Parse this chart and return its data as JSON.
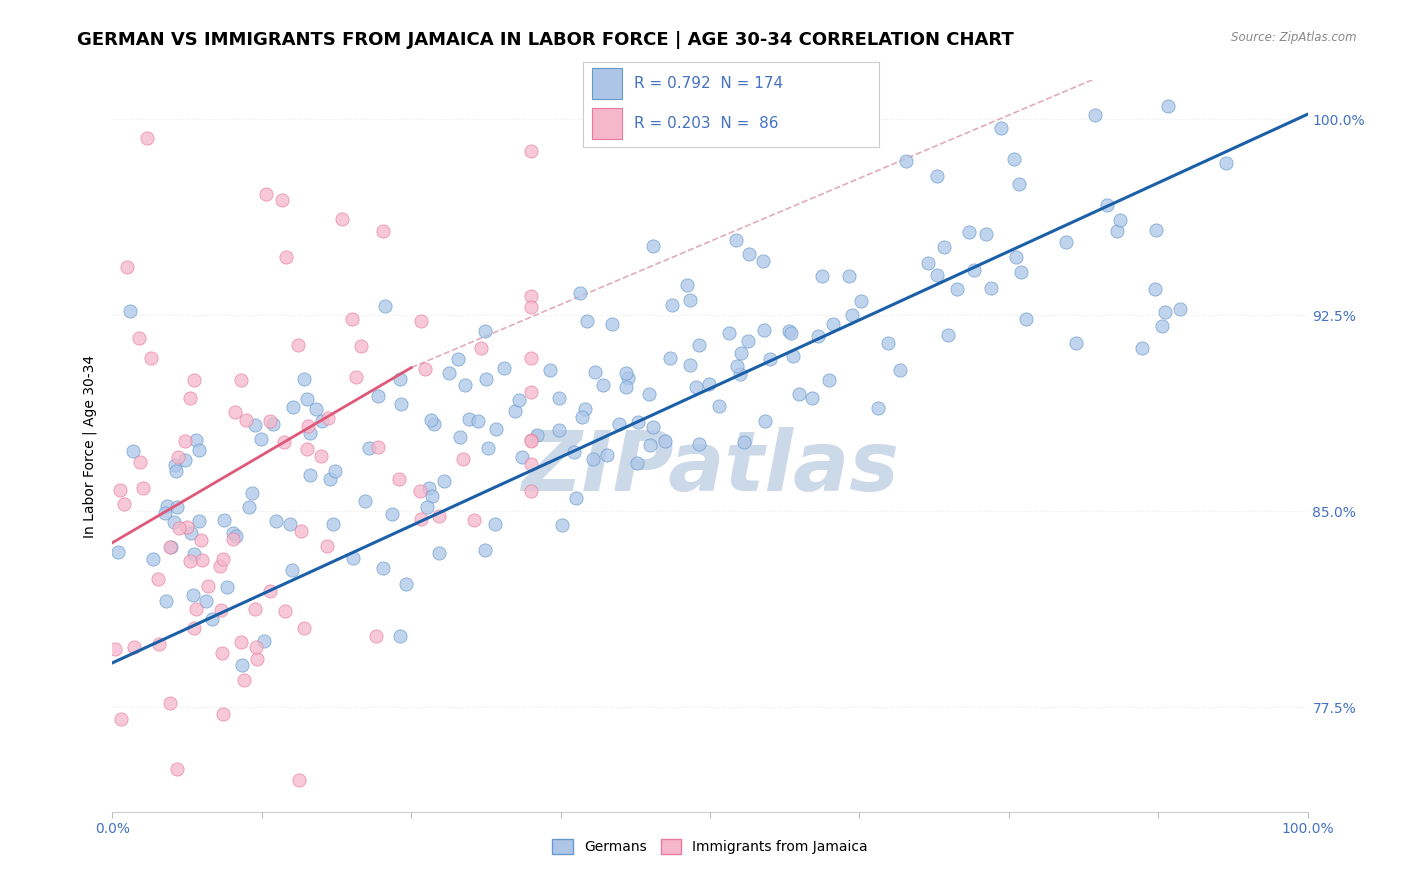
{
  "title": "GERMAN VS IMMIGRANTS FROM JAMAICA IN LABOR FORCE | AGE 30-34 CORRELATION CHART",
  "source_text": "Source: ZipAtlas.com",
  "ylabel": "In Labor Force | Age 30-34",
  "watermark": "ZIPatlas",
  "legend_labels": [
    "Germans",
    "Immigrants from Jamaica"
  ],
  "blue_R": 0.792,
  "blue_N": 174,
  "pink_R": 0.203,
  "pink_N": 86,
  "blue_color": "#adc6e8",
  "blue_edge": "#6699cc",
  "pink_color": "#f5b8cb",
  "pink_edge": "#e87a9f",
  "blue_line_color": "#1a5fa8",
  "pink_line_color": "#e05878",
  "pink_dash_color": "#e8a0b0",
  "xlim": [
    0.0,
    1.0
  ],
  "ylim": [
    0.735,
    1.015
  ],
  "yticks": [
    0.775,
    0.85,
    0.925,
    1.0
  ],
  "ytick_labels": [
    "77.5%",
    "85.0%",
    "92.5%",
    "100.0%"
  ],
  "title_fontsize": 13,
  "axis_color": "#4472c4",
  "axis_fontsize": 10,
  "watermark_fontsize": 60,
  "watermark_color": "#ccd9e8",
  "background_color": "#ffffff",
  "grid_color": "#e8e8e8",
  "legend_box_color": "#f0f0f0"
}
